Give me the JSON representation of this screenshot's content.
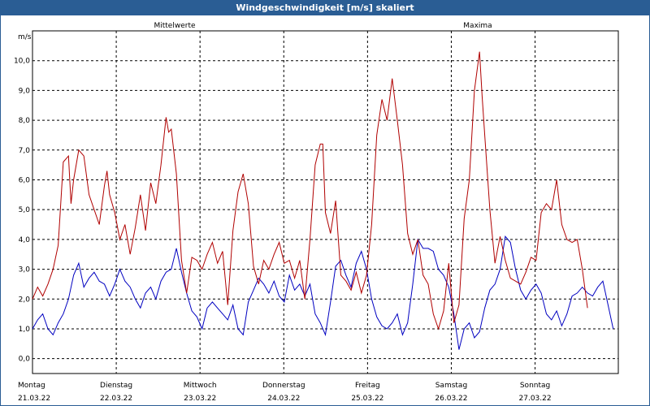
{
  "chart_data": {
    "type": "line",
    "title": "Windgeschwindigkeit [m/s] skaliert",
    "ylabel": "m/s",
    "ylim": [
      -0.5,
      11.0
    ],
    "yticks": [
      0.0,
      1.0,
      2.0,
      3.0,
      4.0,
      5.0,
      6.0,
      7.0,
      8.0,
      9.0,
      10.0
    ],
    "ytick_labels": [
      "0,0",
      "1,0",
      "2,0",
      "3,0",
      "4,0",
      "5,0",
      "6,0",
      "7,0",
      "8,0",
      "9,0",
      "10,0"
    ],
    "x_days": [
      {
        "day": "Montag",
        "date": "21.03.22"
      },
      {
        "day": "Dienstag",
        "date": "22.03.22"
      },
      {
        "day": "Mittwoch",
        "date": "23.03.22"
      },
      {
        "day": "Donnerstag",
        "date": "24.03.22"
      },
      {
        "day": "Freitag",
        "date": "25.03.22"
      },
      {
        "day": "Samstag",
        "date": "26.03.22"
      },
      {
        "day": "Sonntag",
        "date": "27.03.22"
      }
    ],
    "grid": true,
    "series": [
      {
        "name": "Mittelwerte",
        "color": "#0000c0",
        "points": [
          [
            0,
            1.0
          ],
          [
            2,
            1.3
          ],
          [
            4,
            1.5
          ],
          [
            6,
            1.0
          ],
          [
            8,
            0.8
          ],
          [
            10,
            1.2
          ],
          [
            12,
            1.5
          ],
          [
            14,
            2.0
          ],
          [
            16,
            2.8
          ],
          [
            18,
            3.2
          ],
          [
            20,
            2.4
          ],
          [
            22,
            2.7
          ],
          [
            24,
            2.9
          ],
          [
            26,
            2.6
          ],
          [
            28,
            2.5
          ],
          [
            30,
            2.1
          ],
          [
            32,
            2.5
          ],
          [
            34,
            3.0
          ],
          [
            36,
            2.6
          ],
          [
            38,
            2.4
          ],
          [
            40,
            2.0
          ],
          [
            42,
            1.7
          ],
          [
            44,
            2.2
          ],
          [
            46,
            2.4
          ],
          [
            48,
            2.0
          ],
          [
            50,
            2.6
          ],
          [
            52,
            2.9
          ],
          [
            54,
            3.0
          ],
          [
            56,
            3.7
          ],
          [
            58,
            2.9
          ],
          [
            60,
            2.2
          ],
          [
            62,
            1.6
          ],
          [
            64,
            1.4
          ],
          [
            66,
            1.0
          ],
          [
            68,
            1.7
          ],
          [
            70,
            1.9
          ],
          [
            72,
            1.7
          ],
          [
            74,
            1.5
          ],
          [
            76,
            1.3
          ],
          [
            78,
            1.8
          ],
          [
            80,
            1.0
          ],
          [
            82,
            0.8
          ],
          [
            84,
            1.9
          ],
          [
            86,
            2.3
          ],
          [
            88,
            2.7
          ],
          [
            90,
            2.5
          ],
          [
            92,
            2.2
          ],
          [
            94,
            2.6
          ],
          [
            96,
            2.1
          ],
          [
            98,
            1.9
          ],
          [
            100,
            2.8
          ],
          [
            102,
            2.3
          ],
          [
            104,
            2.5
          ],
          [
            106,
            2.1
          ],
          [
            108,
            2.5
          ],
          [
            110,
            1.5
          ],
          [
            112,
            1.2
          ],
          [
            114,
            0.8
          ],
          [
            116,
            1.9
          ],
          [
            118,
            3.1
          ],
          [
            120,
            3.3
          ],
          [
            122,
            2.8
          ],
          [
            124,
            2.4
          ],
          [
            126,
            3.2
          ],
          [
            128,
            3.6
          ],
          [
            130,
            3.0
          ],
          [
            132,
            2.0
          ],
          [
            134,
            1.4
          ],
          [
            136,
            1.1
          ],
          [
            138,
            1.0
          ],
          [
            140,
            1.2
          ],
          [
            142,
            1.5
          ],
          [
            144,
            0.8
          ],
          [
            146,
            1.2
          ],
          [
            148,
            2.5
          ],
          [
            150,
            4.0
          ],
          [
            152,
            3.7
          ],
          [
            154,
            3.7
          ],
          [
            156,
            3.6
          ],
          [
            158,
            3.0
          ],
          [
            160,
            2.8
          ],
          [
            162,
            2.4
          ],
          [
            164,
            1.5
          ],
          [
            166,
            0.3
          ],
          [
            168,
            1.0
          ],
          [
            170,
            1.2
          ],
          [
            172,
            0.7
          ],
          [
            174,
            0.9
          ],
          [
            176,
            1.7
          ],
          [
            178,
            2.3
          ],
          [
            180,
            2.5
          ],
          [
            182,
            3.0
          ],
          [
            184,
            4.1
          ],
          [
            186,
            3.9
          ],
          [
            188,
            3.0
          ],
          [
            190,
            2.3
          ],
          [
            192,
            2.0
          ],
          [
            194,
            2.3
          ],
          [
            196,
            2.5
          ],
          [
            198,
            2.2
          ],
          [
            200,
            1.5
          ],
          [
            202,
            1.3
          ],
          [
            204,
            1.6
          ],
          [
            206,
            1.1
          ],
          [
            208,
            1.5
          ],
          [
            210,
            2.1
          ],
          [
            212,
            2.2
          ],
          [
            214,
            2.4
          ],
          [
            216,
            2.2
          ],
          [
            218,
            2.1
          ],
          [
            220,
            2.4
          ],
          [
            222,
            2.6
          ],
          [
            224,
            1.8
          ],
          [
            226,
            1.0
          ]
        ]
      },
      {
        "name": "Maxima",
        "color": "#b00000",
        "points": [
          [
            0,
            2.0
          ],
          [
            2,
            2.4
          ],
          [
            4,
            2.1
          ],
          [
            6,
            2.5
          ],
          [
            8,
            3.0
          ],
          [
            10,
            3.8
          ],
          [
            12,
            6.6
          ],
          [
            14,
            6.8
          ],
          [
            15,
            5.2
          ],
          [
            16,
            6.0
          ],
          [
            18,
            7.0
          ],
          [
            20,
            6.8
          ],
          [
            22,
            5.5
          ],
          [
            24,
            5.0
          ],
          [
            26,
            4.5
          ],
          [
            28,
            5.8
          ],
          [
            29,
            6.3
          ],
          [
            30,
            5.5
          ],
          [
            32,
            4.9
          ],
          [
            34,
            4.0
          ],
          [
            36,
            4.5
          ],
          [
            38,
            3.5
          ],
          [
            40,
            4.4
          ],
          [
            42,
            5.5
          ],
          [
            44,
            4.3
          ],
          [
            46,
            5.9
          ],
          [
            48,
            5.2
          ],
          [
            50,
            6.5
          ],
          [
            52,
            8.1
          ],
          [
            53,
            7.6
          ],
          [
            54,
            7.7
          ],
          [
            56,
            6.2
          ],
          [
            58,
            3.3
          ],
          [
            60,
            2.2
          ],
          [
            62,
            3.4
          ],
          [
            64,
            3.3
          ],
          [
            66,
            3.0
          ],
          [
            68,
            3.5
          ],
          [
            70,
            3.9
          ],
          [
            72,
            3.2
          ],
          [
            74,
            3.6
          ],
          [
            76,
            1.8
          ],
          [
            78,
            4.3
          ],
          [
            80,
            5.6
          ],
          [
            82,
            6.2
          ],
          [
            84,
            5.2
          ],
          [
            86,
            3.1
          ],
          [
            88,
            2.5
          ],
          [
            90,
            3.3
          ],
          [
            92,
            3.0
          ],
          [
            94,
            3.5
          ],
          [
            96,
            3.9
          ],
          [
            98,
            3.2
          ],
          [
            100,
            3.3
          ],
          [
            102,
            2.7
          ],
          [
            104,
            3.3
          ],
          [
            106,
            2.0
          ],
          [
            108,
            4.0
          ],
          [
            110,
            6.5
          ],
          [
            112,
            7.2
          ],
          [
            113,
            7.2
          ],
          [
            114,
            4.9
          ],
          [
            116,
            4.2
          ],
          [
            118,
            5.3
          ],
          [
            120,
            2.8
          ],
          [
            122,
            2.6
          ],
          [
            124,
            2.3
          ],
          [
            126,
            2.9
          ],
          [
            128,
            2.2
          ],
          [
            130,
            2.8
          ],
          [
            132,
            4.5
          ],
          [
            134,
            7.5
          ],
          [
            136,
            8.7
          ],
          [
            138,
            8.0
          ],
          [
            140,
            9.4
          ],
          [
            142,
            8.0
          ],
          [
            144,
            6.5
          ],
          [
            146,
            4.2
          ],
          [
            148,
            3.5
          ],
          [
            150,
            4.0
          ],
          [
            152,
            2.8
          ],
          [
            154,
            2.5
          ],
          [
            156,
            1.5
          ],
          [
            158,
            1.0
          ],
          [
            160,
            1.6
          ],
          [
            162,
            3.2
          ],
          [
            164,
            1.2
          ],
          [
            166,
            1.8
          ],
          [
            168,
            4.7
          ],
          [
            170,
            6.0
          ],
          [
            172,
            9.0
          ],
          [
            174,
            10.3
          ],
          [
            175,
            8.8
          ],
          [
            176,
            7.5
          ],
          [
            178,
            5.0
          ],
          [
            180,
            3.2
          ],
          [
            182,
            4.1
          ],
          [
            184,
            3.3
          ],
          [
            186,
            2.7
          ],
          [
            188,
            2.6
          ],
          [
            190,
            2.5
          ],
          [
            192,
            2.9
          ],
          [
            194,
            3.4
          ],
          [
            196,
            3.3
          ],
          [
            198,
            4.9
          ],
          [
            200,
            5.2
          ],
          [
            202,
            5.0
          ],
          [
            204,
            6.0
          ],
          [
            206,
            4.5
          ],
          [
            208,
            4.0
          ],
          [
            210,
            3.9
          ],
          [
            212,
            4.0
          ],
          [
            214,
            3.0
          ],
          [
            216,
            1.7
          ]
        ]
      }
    ]
  }
}
